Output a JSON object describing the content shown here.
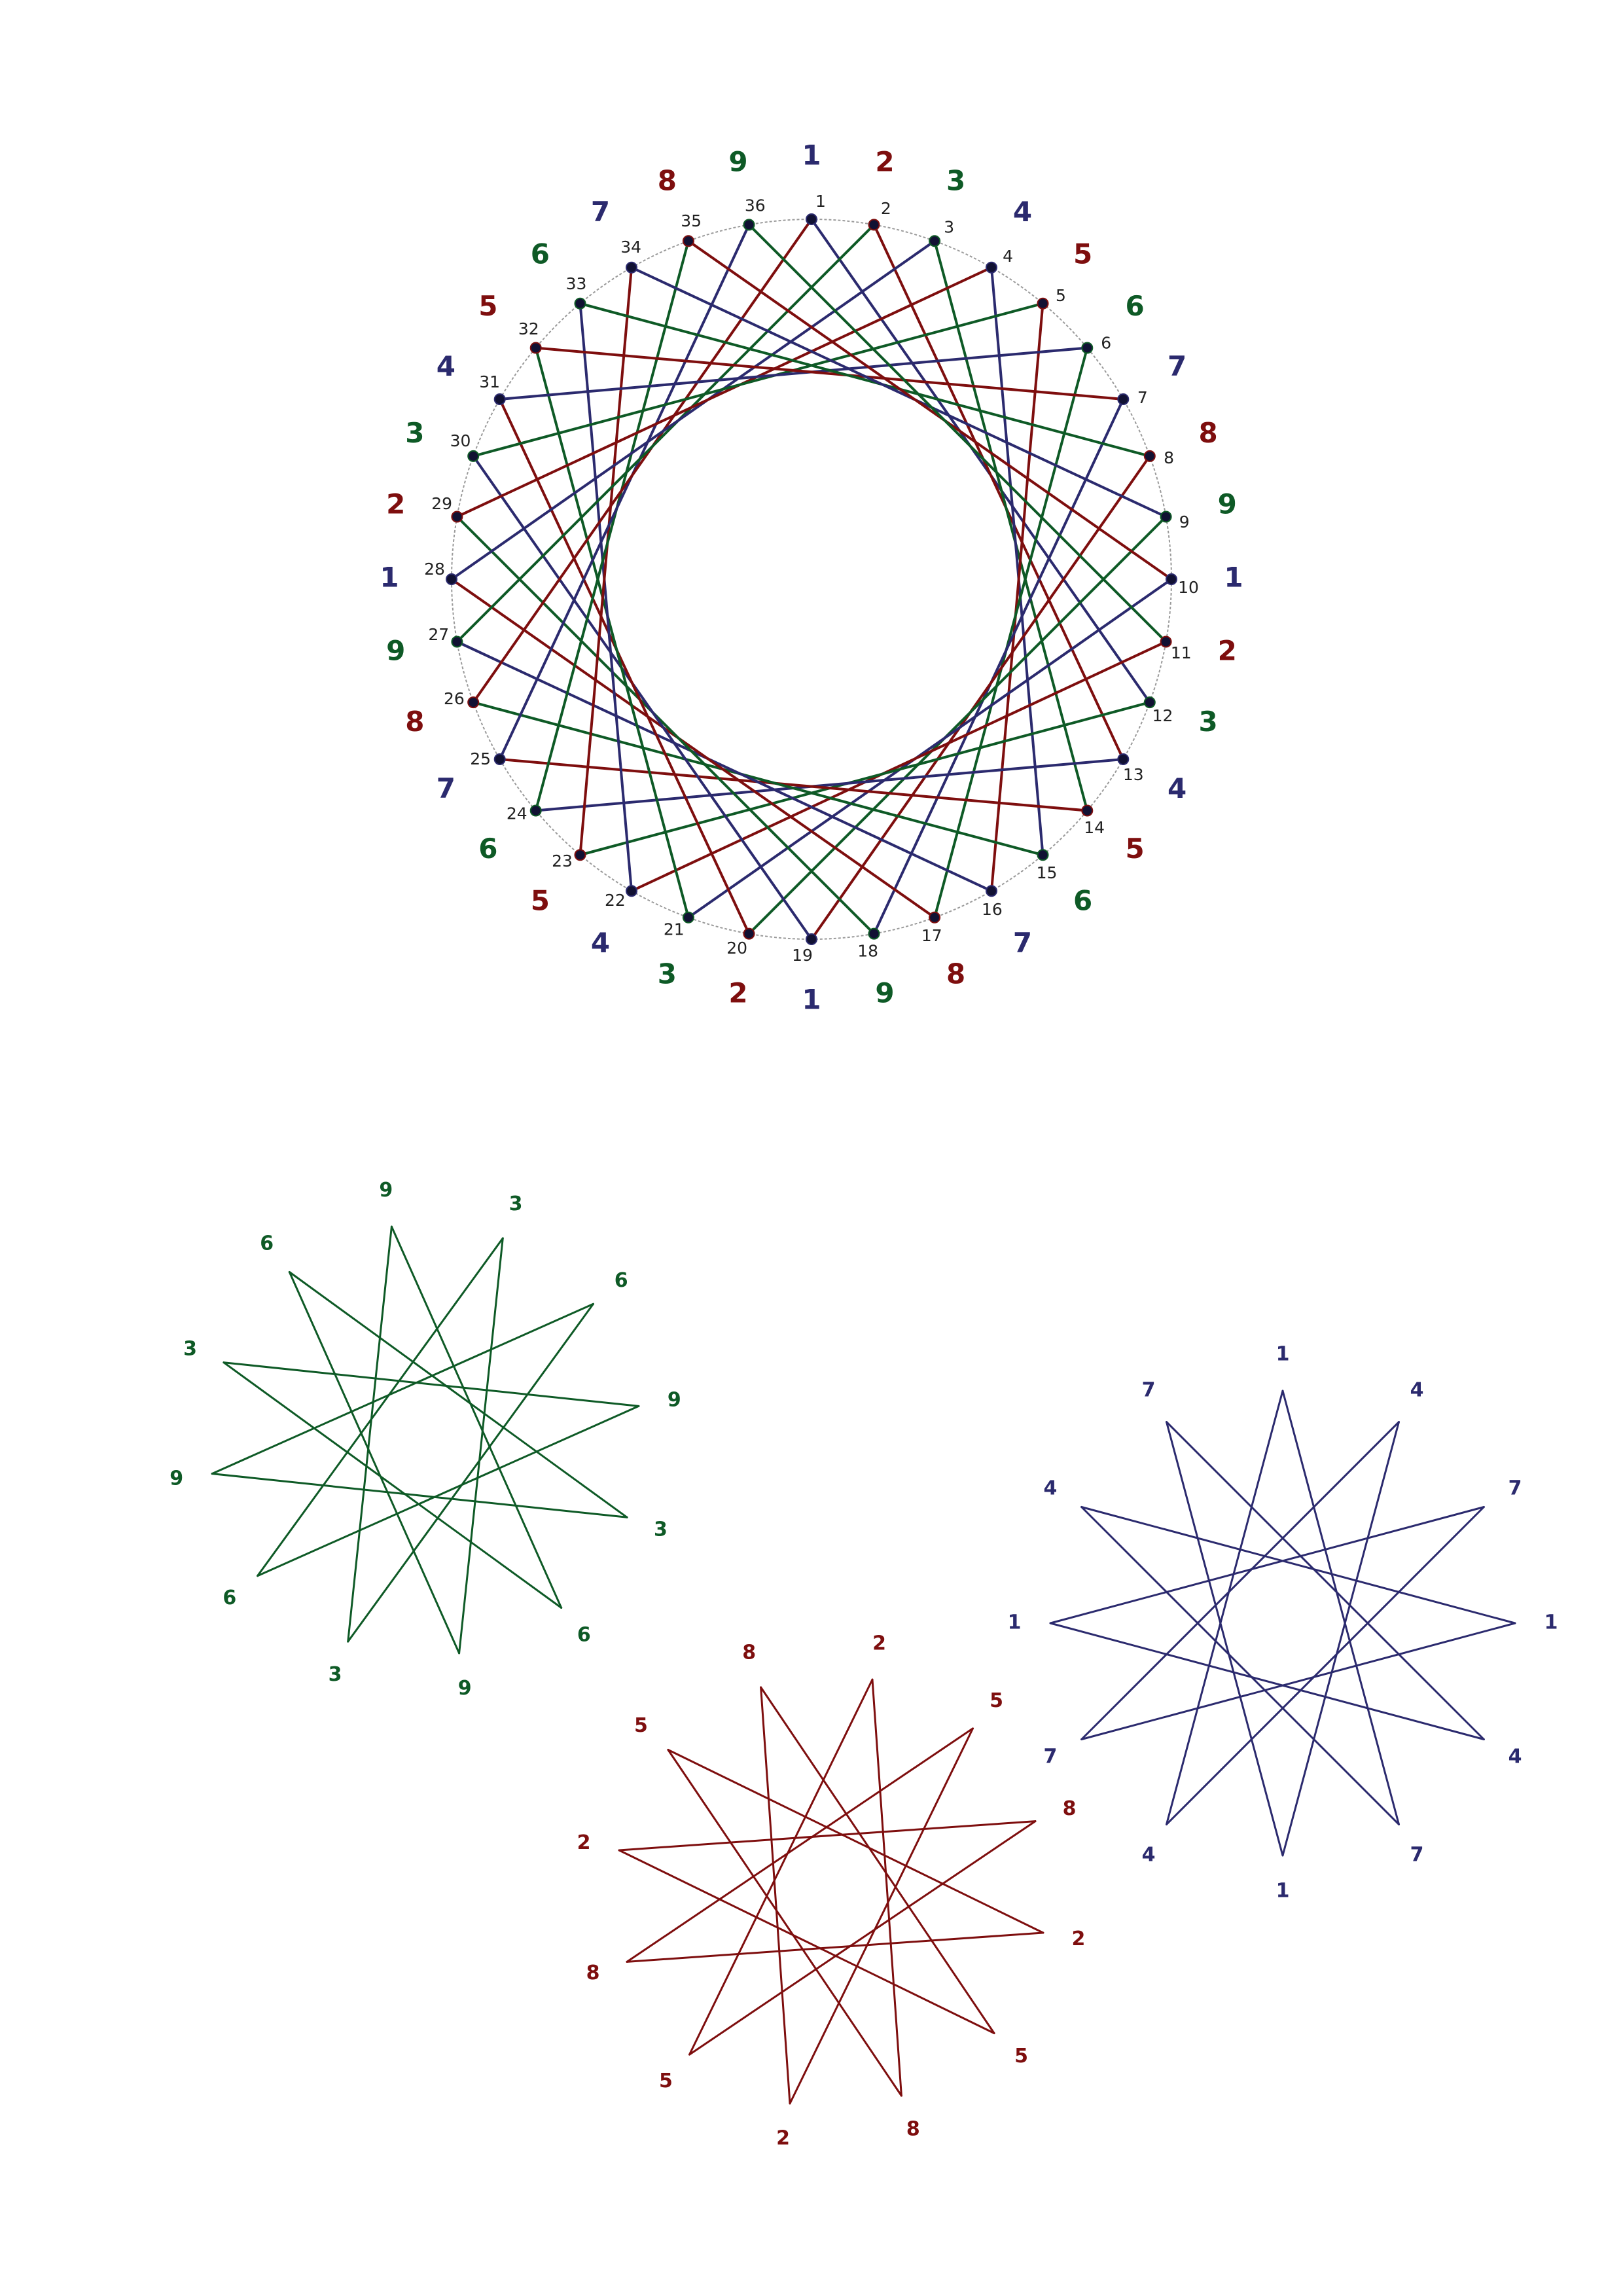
{
  "colors": {
    "group_1_4_7": "#2b2a6e",
    "group_2_5_8": "#7e0e0e",
    "group_3_6_9": "#0e5a26",
    "rim": "#9a9a9a",
    "index_text": "#222222"
  },
  "main_wheel": {
    "point_count": 36,
    "skip": 11,
    "index_labels": [
      "1",
      "2",
      "3",
      "4",
      "5",
      "6",
      "7",
      "8",
      "9",
      "10",
      "11",
      "12",
      "13",
      "14",
      "15",
      "16",
      "17",
      "18",
      "19",
      "20",
      "21",
      "22",
      "23",
      "24",
      "25",
      "26",
      "27",
      "28",
      "29",
      "30",
      "31",
      "32",
      "33",
      "34",
      "35",
      "36"
    ],
    "digit_labels": [
      "1",
      "2",
      "3",
      "4",
      "5",
      "6",
      "7",
      "8",
      "9",
      "1",
      "2",
      "3",
      "4",
      "5",
      "6",
      "7",
      "8",
      "9",
      "1",
      "2",
      "3",
      "4",
      "5",
      "6",
      "7",
      "8",
      "9",
      "1",
      "2",
      "3",
      "4",
      "5",
      "6",
      "7",
      "8",
      "9"
    ]
  },
  "stars": [
    {
      "name": "star-3-6-9",
      "color_key": "group_3_6_9",
      "labels": [
        "9",
        "3",
        "6",
        "9",
        "3",
        "6",
        "9",
        "3",
        "6",
        "9",
        "3",
        "6"
      ]
    },
    {
      "name": "star-2-5-8",
      "color_key": "group_2_5_8",
      "labels": [
        "2",
        "5",
        "8",
        "2",
        "5",
        "8",
        "2",
        "5",
        "8",
        "2",
        "5",
        "8"
      ]
    },
    {
      "name": "star-1-4-7",
      "color_key": "group_1_4_7",
      "labels": [
        "1",
        "4",
        "7",
        "1",
        "4",
        "7",
        "1",
        "4",
        "7",
        "1",
        "4",
        "7"
      ]
    }
  ]
}
